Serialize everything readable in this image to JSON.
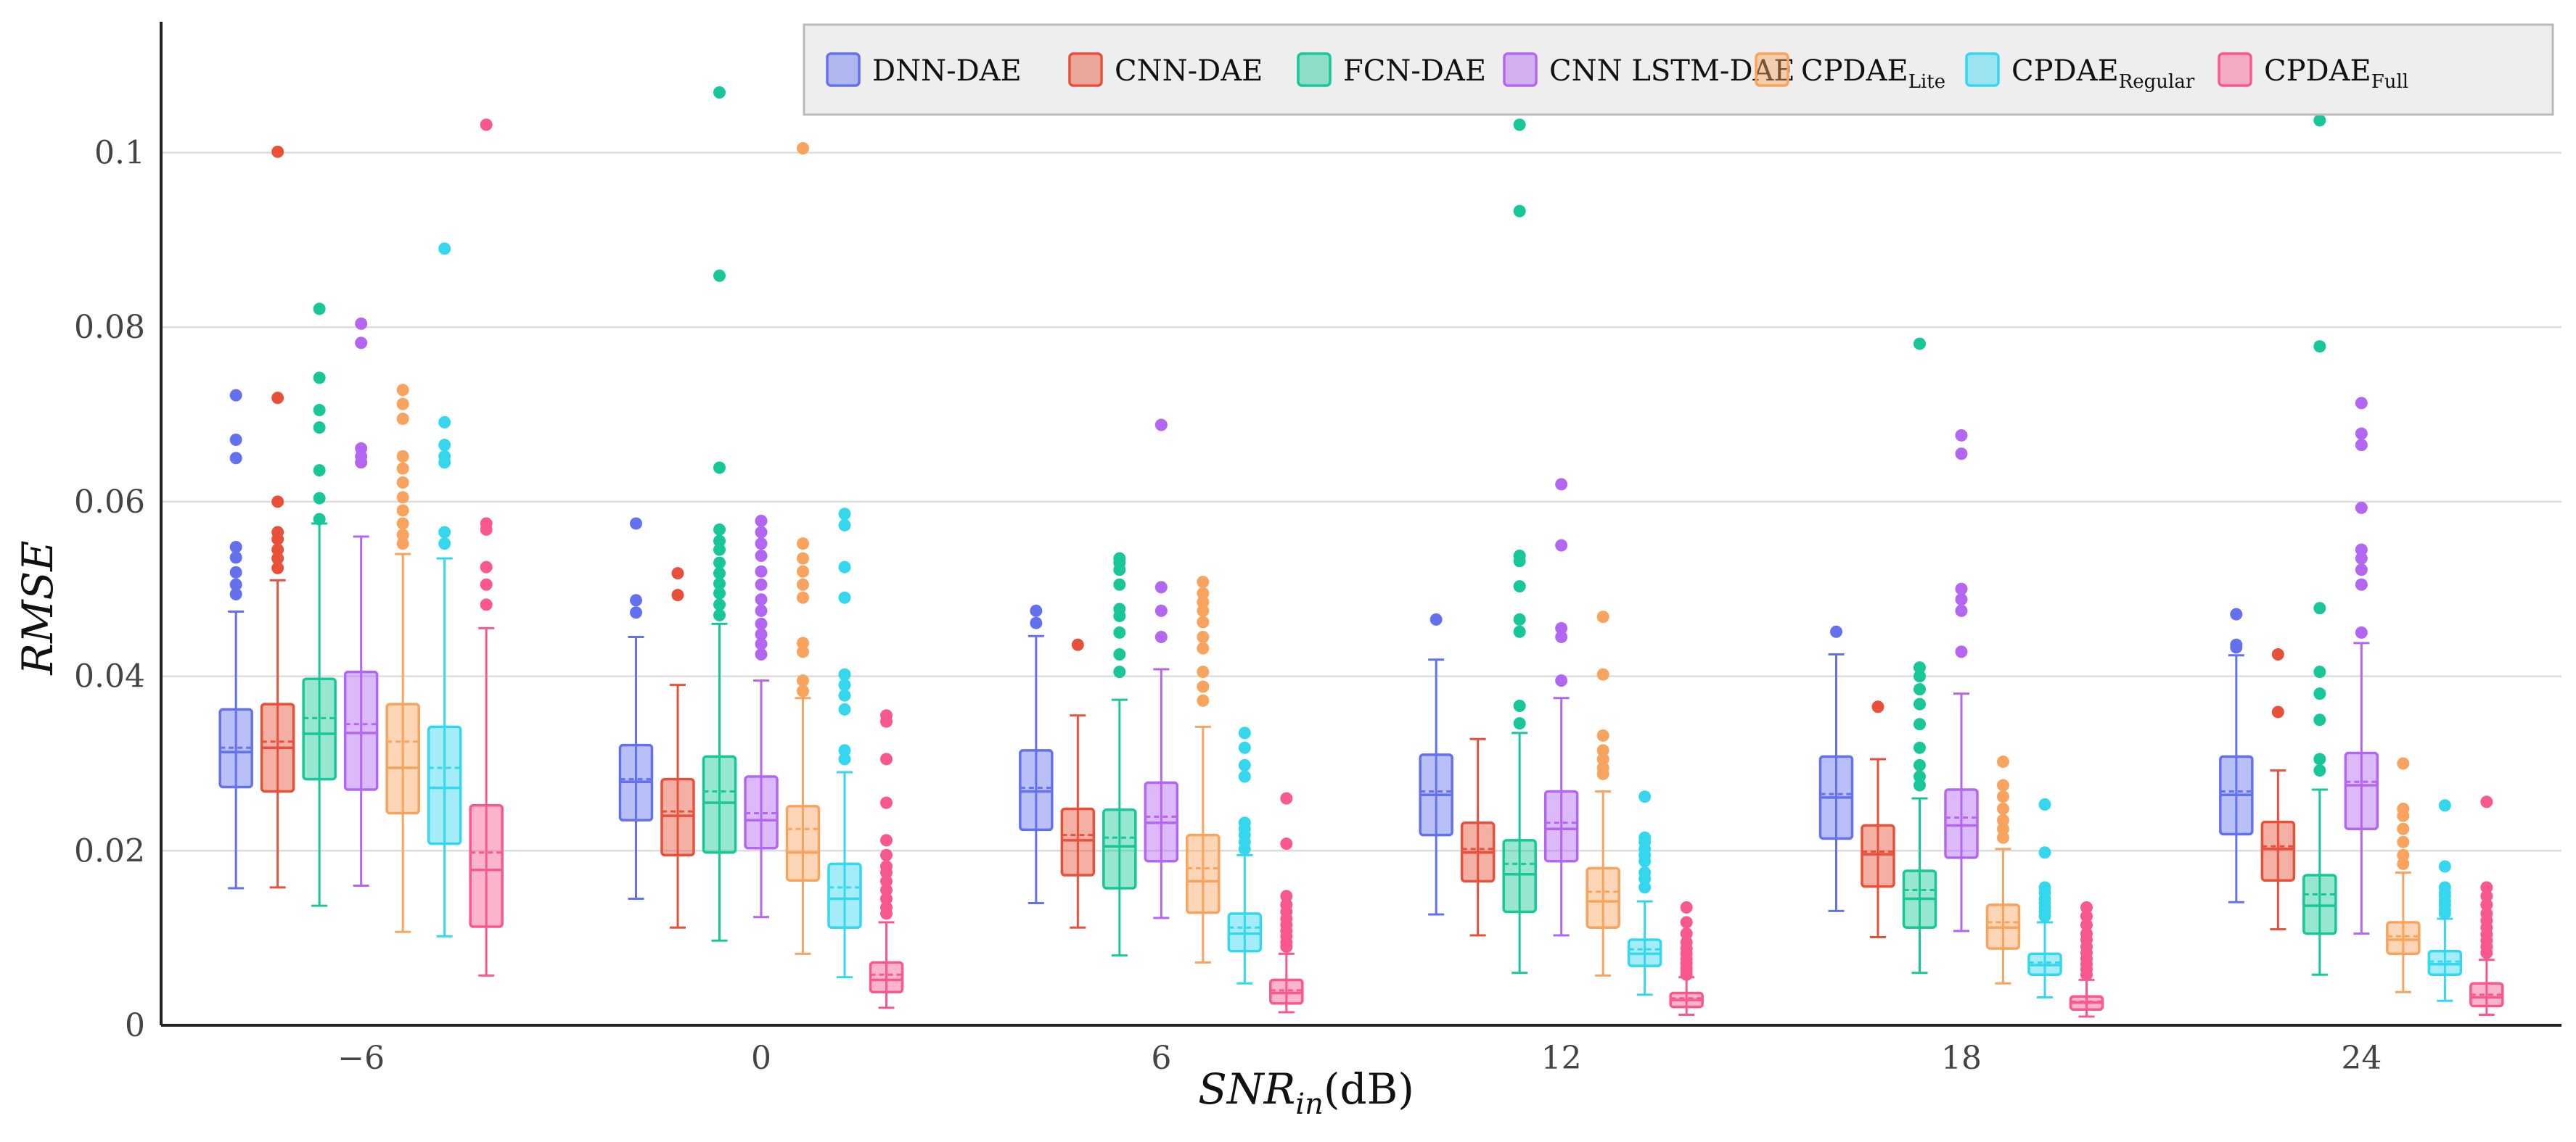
{
  "chart_data": {
    "type": "box",
    "title": "",
    "xlabel": "SNR",
    "xlabel_subscript": "in",
    "xlabel_unit": "(dB)",
    "ylabel": "RMSE",
    "ylim": [
      0,
      0.115
    ],
    "y_ticks": [
      0,
      0.02,
      0.04,
      0.06,
      0.08,
      0.1
    ],
    "y_tick_labels": [
      "0",
      "0.02",
      "0.04",
      "0.06",
      "0.08",
      "0.1"
    ],
    "grid": true,
    "legend_position": "top-right",
    "categories": [
      "−6",
      "0",
      "6",
      "12",
      "18",
      "24"
    ],
    "series": [
      {
        "name": "DNN-DAE",
        "base": "DNN-DAE",
        "sub": "",
        "color": "#6471ee",
        "boxes": [
          {
            "q1": 0.0273,
            "median": 0.0313,
            "mean": 0.0318,
            "q3": 0.0362,
            "lower": 0.0157,
            "upper": 0.0474,
            "outliers": [
              0.0722,
              0.0671,
              0.065,
              0.0548,
              0.0536,
              0.0519,
              0.0505,
              0.0494
            ]
          },
          {
            "q1": 0.0235,
            "median": 0.0279,
            "mean": 0.0282,
            "q3": 0.0321,
            "lower": 0.0145,
            "upper": 0.0445,
            "outliers": [
              0.0575,
              0.0487,
              0.0473
            ]
          },
          {
            "q1": 0.0224,
            "median": 0.0268,
            "mean": 0.0272,
            "q3": 0.0315,
            "lower": 0.014,
            "upper": 0.0446,
            "outliers": [
              0.0475,
              0.0461
            ]
          },
          {
            "q1": 0.0218,
            "median": 0.0264,
            "mean": 0.0268,
            "q3": 0.031,
            "lower": 0.0127,
            "upper": 0.0419,
            "outliers": [
              0.0465
            ]
          },
          {
            "q1": 0.0214,
            "median": 0.0261,
            "mean": 0.0265,
            "q3": 0.0308,
            "lower": 0.0131,
            "upper": 0.0425,
            "outliers": [
              0.0451
            ]
          },
          {
            "q1": 0.0219,
            "median": 0.0264,
            "mean": 0.0268,
            "q3": 0.0308,
            "lower": 0.0141,
            "upper": 0.0424,
            "outliers": [
              0.0471,
              0.0436,
              0.0433
            ]
          }
        ]
      },
      {
        "name": "CNN-DAE",
        "base": "CNN-DAE",
        "sub": "",
        "color": "#e8503a",
        "boxes": [
          {
            "q1": 0.0268,
            "median": 0.0318,
            "mean": 0.0325,
            "q3": 0.0368,
            "lower": 0.0158,
            "upper": 0.051,
            "outliers": [
              0.1001,
              0.0719,
              0.06,
              0.0565,
              0.0557,
              0.0545,
              0.0535,
              0.0524
            ]
          },
          {
            "q1": 0.0195,
            "median": 0.024,
            "mean": 0.0245,
            "q3": 0.0282,
            "lower": 0.0112,
            "upper": 0.039,
            "outliers": [
              0.0518,
              0.0493
            ]
          },
          {
            "q1": 0.0172,
            "median": 0.0212,
            "mean": 0.0218,
            "q3": 0.0248,
            "lower": 0.0112,
            "upper": 0.0355,
            "outliers": [
              0.0436
            ]
          },
          {
            "q1": 0.0165,
            "median": 0.0198,
            "mean": 0.0202,
            "q3": 0.0232,
            "lower": 0.0103,
            "upper": 0.0328,
            "outliers": []
          },
          {
            "q1": 0.0159,
            "median": 0.0196,
            "mean": 0.0199,
            "q3": 0.0229,
            "lower": 0.0101,
            "upper": 0.0305,
            "outliers": [
              0.0365
            ]
          },
          {
            "q1": 0.0166,
            "median": 0.0202,
            "mean": 0.0205,
            "q3": 0.0233,
            "lower": 0.011,
            "upper": 0.0292,
            "outliers": [
              0.0425,
              0.0359
            ]
          }
        ]
      },
      {
        "name": "FCN-DAE",
        "base": "FCN-DAE",
        "sub": "",
        "color": "#17c797",
        "boxes": [
          {
            "q1": 0.0282,
            "median": 0.0334,
            "mean": 0.0352,
            "q3": 0.0397,
            "lower": 0.0137,
            "upper": 0.0575,
            "outliers": [
              0.0821,
              0.0742,
              0.0705,
              0.0685,
              0.0636,
              0.0604,
              0.058
            ]
          },
          {
            "q1": 0.0198,
            "median": 0.0255,
            "mean": 0.0268,
            "q3": 0.0308,
            "lower": 0.0097,
            "upper": 0.046,
            "outliers": [
              0.1069,
              0.0859,
              0.0639,
              0.0568,
              0.0555,
              0.0545,
              0.053,
              0.0518,
              0.0506,
              0.0495,
              0.0482,
              0.047
            ]
          },
          {
            "q1": 0.0157,
            "median": 0.0205,
            "mean": 0.0215,
            "q3": 0.0247,
            "lower": 0.008,
            "upper": 0.0373,
            "outliers": [
              0.0535,
              0.053,
              0.0522,
              0.0505,
              0.0477,
              0.0469,
              0.045,
              0.0425,
              0.0405
            ]
          },
          {
            "q1": 0.013,
            "median": 0.0173,
            "mean": 0.0185,
            "q3": 0.0212,
            "lower": 0.006,
            "upper": 0.0335,
            "outliers": [
              0.1032,
              0.0933,
              0.0538,
              0.0532,
              0.0503,
              0.0465,
              0.0451,
              0.0366,
              0.0346
            ]
          },
          {
            "q1": 0.0112,
            "median": 0.0145,
            "mean": 0.0155,
            "q3": 0.0177,
            "lower": 0.006,
            "upper": 0.026,
            "outliers": [
              0.0781,
              0.041,
              0.04,
              0.0385,
              0.0368,
              0.0345,
              0.0318,
              0.0298,
              0.0285,
              0.0275
            ]
          },
          {
            "q1": 0.0105,
            "median": 0.0137,
            "mean": 0.015,
            "q3": 0.0172,
            "lower": 0.0058,
            "upper": 0.027,
            "outliers": [
              0.1037,
              0.0778,
              0.0478,
              0.0405,
              0.038,
              0.035,
              0.0305,
              0.0292
            ]
          }
        ]
      },
      {
        "name": "CNN LSTM-DAE",
        "base": "CNN LSTM-DAE",
        "sub": "",
        "color": "#b266f2",
        "boxes": [
          {
            "q1": 0.027,
            "median": 0.0335,
            "mean": 0.0345,
            "q3": 0.0405,
            "lower": 0.016,
            "upper": 0.056,
            "outliers": [
              0.0804,
              0.0782,
              0.0661,
              0.0652,
              0.0645
            ]
          },
          {
            "q1": 0.0203,
            "median": 0.0235,
            "mean": 0.0243,
            "q3": 0.0285,
            "lower": 0.0124,
            "upper": 0.0395,
            "outliers": [
              0.0578,
              0.0565,
              0.0552,
              0.0538,
              0.052,
              0.0505,
              0.0488,
              0.0475,
              0.046,
              0.0448,
              0.0437,
              0.0425
            ]
          },
          {
            "q1": 0.0188,
            "median": 0.0232,
            "mean": 0.0239,
            "q3": 0.0278,
            "lower": 0.0123,
            "upper": 0.0408,
            "outliers": [
              0.0688,
              0.0502,
              0.0475,
              0.0445
            ]
          },
          {
            "q1": 0.0188,
            "median": 0.0225,
            "mean": 0.0232,
            "q3": 0.0268,
            "lower": 0.0103,
            "upper": 0.0375,
            "outliers": [
              0.062,
              0.055,
              0.0455,
              0.0445,
              0.0395
            ]
          },
          {
            "q1": 0.0192,
            "median": 0.0229,
            "mean": 0.0238,
            "q3": 0.027,
            "lower": 0.0108,
            "upper": 0.038,
            "outliers": [
              0.0676,
              0.0655,
              0.05,
              0.0488,
              0.0475,
              0.0428
            ]
          },
          {
            "q1": 0.0225,
            "median": 0.0275,
            "mean": 0.0279,
            "q3": 0.0312,
            "lower": 0.0105,
            "upper": 0.0438,
            "outliers": [
              0.0713,
              0.0678,
              0.0665,
              0.0593,
              0.0545,
              0.0535,
              0.0522,
              0.0505,
              0.045
            ]
          }
        ]
      },
      {
        "name": "CPDAELite",
        "base": "CPDAE",
        "sub": "Lite",
        "color": "#f8a45e",
        "boxes": [
          {
            "q1": 0.0243,
            "median": 0.0295,
            "mean": 0.0325,
            "q3": 0.0368,
            "lower": 0.0107,
            "upper": 0.054,
            "outliers": [
              0.0728,
              0.0712,
              0.0695,
              0.0652,
              0.0638,
              0.0622,
              0.0605,
              0.059,
              0.0575,
              0.0562,
              0.0552
            ]
          },
          {
            "q1": 0.0166,
            "median": 0.0198,
            "mean": 0.0225,
            "q3": 0.0251,
            "lower": 0.0082,
            "upper": 0.0375,
            "outliers": [
              0.1005,
              0.0552,
              0.0535,
              0.052,
              0.0505,
              0.049,
              0.0438,
              0.0428,
              0.0395,
              0.0383
            ]
          },
          {
            "q1": 0.0129,
            "median": 0.0165,
            "mean": 0.018,
            "q3": 0.0218,
            "lower": 0.0072,
            "upper": 0.0342,
            "outliers": [
              0.0508,
              0.0495,
              0.0485,
              0.0475,
              0.0462,
              0.0445,
              0.0432,
              0.0405,
              0.0388,
              0.0372
            ]
          },
          {
            "q1": 0.0112,
            "median": 0.0142,
            "mean": 0.0153,
            "q3": 0.018,
            "lower": 0.0057,
            "upper": 0.0268,
            "outliers": [
              0.0468,
              0.0402,
              0.0332,
              0.0315,
              0.0305,
              0.0295,
              0.0288
            ]
          },
          {
            "q1": 0.0088,
            "median": 0.0112,
            "mean": 0.0118,
            "q3": 0.0138,
            "lower": 0.0048,
            "upper": 0.0202,
            "outliers": [
              0.0302,
              0.0275,
              0.0262,
              0.0248,
              0.0235,
              0.0225,
              0.0215
            ]
          },
          {
            "q1": 0.0082,
            "median": 0.0098,
            "mean": 0.0102,
            "q3": 0.0118,
            "lower": 0.0038,
            "upper": 0.0175,
            "outliers": [
              0.03,
              0.0248,
              0.024,
              0.0225,
              0.021,
              0.0195,
              0.0185
            ]
          }
        ]
      },
      {
        "name": "CPDAERegular",
        "base": "CPDAE",
        "sub": "Regular",
        "color": "#35d7ef",
        "boxes": [
          {
            "q1": 0.0208,
            "median": 0.0272,
            "mean": 0.0295,
            "q3": 0.0342,
            "lower": 0.0102,
            "upper": 0.0535,
            "outliers": [
              0.089,
              0.0691,
              0.0665,
              0.0652,
              0.0645,
              0.0565,
              0.0552
            ]
          },
          {
            "q1": 0.0112,
            "median": 0.0145,
            "mean": 0.0158,
            "q3": 0.0185,
            "lower": 0.0055,
            "upper": 0.029,
            "outliers": [
              0.0586,
              0.0573,
              0.0525,
              0.049,
              0.0402,
              0.039,
              0.0378,
              0.0362,
              0.0315,
              0.0305
            ]
          },
          {
            "q1": 0.0085,
            "median": 0.0105,
            "mean": 0.0112,
            "q3": 0.0128,
            "lower": 0.0048,
            "upper": 0.0195,
            "outliers": [
              0.0335,
              0.0318,
              0.0298,
              0.0285,
              0.0232,
              0.0225,
              0.0218,
              0.021,
              0.0202
            ]
          },
          {
            "q1": 0.0068,
            "median": 0.0082,
            "mean": 0.0087,
            "q3": 0.0098,
            "lower": 0.0035,
            "upper": 0.0142,
            "outliers": [
              0.0262,
              0.0215,
              0.021,
              0.0202,
              0.0195,
              0.0188,
              0.0175,
              0.0168,
              0.0158
            ]
          },
          {
            "q1": 0.0058,
            "median": 0.0069,
            "mean": 0.0072,
            "q3": 0.0082,
            "lower": 0.0032,
            "upper": 0.0118,
            "outliers": [
              0.0253,
              0.0198,
              0.0158,
              0.0152,
              0.0145,
              0.014,
              0.0135,
              0.013,
              0.0125
            ]
          },
          {
            "q1": 0.0058,
            "median": 0.007,
            "mean": 0.0073,
            "q3": 0.0085,
            "lower": 0.0028,
            "upper": 0.0122,
            "outliers": [
              0.0252,
              0.0182,
              0.0158,
              0.0152,
              0.0148,
              0.0142,
              0.0138,
              0.0132,
              0.0128
            ]
          }
        ]
      },
      {
        "name": "CPDAEFull",
        "base": "CPDAE",
        "sub": "Full",
        "color": "#f9588f",
        "boxes": [
          {
            "q1": 0.0113,
            "median": 0.0178,
            "mean": 0.0198,
            "q3": 0.0252,
            "lower": 0.0057,
            "upper": 0.0455,
            "outliers": [
              0.1032,
              0.0575,
              0.0568,
              0.0525,
              0.0505,
              0.0482
            ]
          },
          {
            "q1": 0.0038,
            "median": 0.0052,
            "mean": 0.0058,
            "q3": 0.0072,
            "lower": 0.002,
            "upper": 0.0118,
            "outliers": [
              0.0355,
              0.0348,
              0.0305,
              0.0255,
              0.0212,
              0.0195,
              0.0182,
              0.0175,
              0.0165,
              0.0155,
              0.0145,
              0.0135,
              0.0128
            ]
          },
          {
            "q1": 0.0025,
            "median": 0.0037,
            "mean": 0.004,
            "q3": 0.0052,
            "lower": 0.0015,
            "upper": 0.0082,
            "outliers": [
              0.026,
              0.0208,
              0.0148,
              0.0138,
              0.013,
              0.0122,
              0.0115,
              0.0108,
              0.0102,
              0.0095,
              0.009
            ]
          },
          {
            "q1": 0.0021,
            "median": 0.0029,
            "mean": 0.0031,
            "q3": 0.0037,
            "lower": 0.0012,
            "upper": 0.0055,
            "outliers": [
              0.0135,
              0.0118,
              0.0105,
              0.0095,
              0.0088,
              0.0082,
              0.0076,
              0.0071,
              0.0066,
              0.0062,
              0.0058
            ]
          },
          {
            "q1": 0.0018,
            "median": 0.0026,
            "mean": 0.0027,
            "q3": 0.0033,
            "lower": 0.001,
            "upper": 0.0052,
            "outliers": [
              0.0135,
              0.0125,
              0.0115,
              0.0105,
              0.0098,
              0.009,
              0.0083,
              0.0076,
              0.007,
              0.0064,
              0.0058
            ]
          },
          {
            "q1": 0.0022,
            "median": 0.0032,
            "mean": 0.0035,
            "q3": 0.0048,
            "lower": 0.0012,
            "upper": 0.0075,
            "outliers": [
              0.0256,
              0.0158,
              0.0148,
              0.0138,
              0.0128,
              0.012,
              0.0112,
              0.0104,
              0.0097,
              0.009,
              0.0083
            ]
          }
        ]
      }
    ]
  }
}
